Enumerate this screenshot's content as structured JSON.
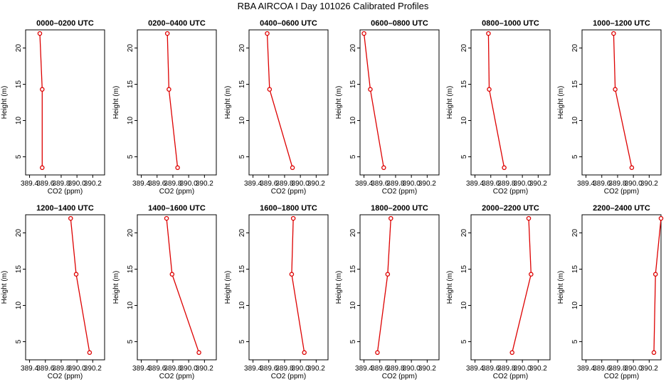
{
  "figure": {
    "title": "RBA AIRCOA I  Day 101026  Calibrated Profiles",
    "line_color": "#dd0000",
    "axis_color": "#000000"
  },
  "chart_data": [
    {
      "type": "line",
      "title": "0000–0200 UTC",
      "xlabel": "CO2 (ppm)",
      "ylabel": "Height (m)",
      "xlim": [
        389.35,
        390.35
      ],
      "ylim": [
        2.5,
        22.5
      ],
      "xticks": [
        "389.4",
        "389.6",
        "389.8",
        "390.0",
        "390.2"
      ],
      "yticks": [
        "5",
        "10",
        "15",
        "20"
      ],
      "x": [
        389.53,
        389.56,
        389.56
      ],
      "y": [
        22,
        14.3,
        3.5
      ]
    },
    {
      "type": "line",
      "title": "0200–0400 UTC",
      "xlabel": "CO2 (ppm)",
      "ylabel": "Height (m)",
      "xlim": [
        389.35,
        390.35
      ],
      "ylim": [
        2.5,
        22.5
      ],
      "xticks": [
        "389.4",
        "389.6",
        "389.8",
        "390.0",
        "390.2"
      ],
      "yticks": [
        "5",
        "10",
        "15",
        "20"
      ],
      "x": [
        389.73,
        389.75,
        389.86
      ],
      "y": [
        22,
        14.3,
        3.5
      ]
    },
    {
      "type": "line",
      "title": "0400–0600 UTC",
      "xlabel": "CO2 (ppm)",
      "ylabel": "Height (m)",
      "xlim": [
        389.35,
        390.35
      ],
      "ylim": [
        2.5,
        22.5
      ],
      "xticks": [
        "389.4",
        "389.6",
        "389.8",
        "390.0",
        "390.2"
      ],
      "yticks": [
        "5",
        "10",
        "15",
        "20"
      ],
      "x": [
        389.58,
        389.61,
        389.9
      ],
      "y": [
        22,
        14.3,
        3.5
      ]
    },
    {
      "type": "line",
      "title": "0600–0800 UTC",
      "xlabel": "CO2 (ppm)",
      "ylabel": "Height (m)",
      "xlim": [
        389.35,
        390.35
      ],
      "ylim": [
        2.5,
        22.5
      ],
      "xticks": [
        "389.4",
        "389.6",
        "389.8",
        "390.0",
        "390.2"
      ],
      "yticks": [
        "5",
        "10",
        "15",
        "20"
      ],
      "x": [
        389.4,
        389.48,
        389.65
      ],
      "y": [
        22,
        14.3,
        3.5
      ]
    },
    {
      "type": "line",
      "title": "0800–1000 UTC",
      "xlabel": "CO2 (ppm)",
      "ylabel": "Height (m)",
      "xlim": [
        389.35,
        390.35
      ],
      "ylim": [
        2.5,
        22.5
      ],
      "xticks": [
        "389.4",
        "389.6",
        "389.8",
        "390.0",
        "390.2"
      ],
      "yticks": [
        "5",
        "10",
        "15",
        "20"
      ],
      "x": [
        389.57,
        389.58,
        389.77
      ],
      "y": [
        22,
        14.3,
        3.5
      ]
    },
    {
      "type": "line",
      "title": "1000–1200 UTC",
      "xlabel": "CO2 (ppm)",
      "ylabel": "Height (m)",
      "xlim": [
        389.35,
        390.35
      ],
      "ylim": [
        2.5,
        22.5
      ],
      "xticks": [
        "389.4",
        "389.6",
        "389.8",
        "390.0",
        "390.2"
      ],
      "yticks": [
        "5",
        "10",
        "15",
        "20"
      ],
      "x": [
        389.75,
        389.77,
        389.98
      ],
      "y": [
        22,
        14.3,
        3.5
      ]
    },
    {
      "type": "line",
      "title": "1200–1400 UTC",
      "xlabel": "CO2 (ppm)",
      "ylabel": "Height (m)",
      "xlim": [
        389.35,
        390.35
      ],
      "ylim": [
        2.5,
        22.5
      ],
      "xticks": [
        "389.4",
        "389.6",
        "389.8",
        "390.0",
        "390.2"
      ],
      "yticks": [
        "5",
        "10",
        "15",
        "20"
      ],
      "x": [
        389.92,
        389.99,
        390.16
      ],
      "y": [
        22,
        14.3,
        3.5
      ]
    },
    {
      "type": "line",
      "title": "1400–1600 UTC",
      "xlabel": "CO2 (ppm)",
      "ylabel": "Height (m)",
      "xlim": [
        389.35,
        390.35
      ],
      "ylim": [
        2.5,
        22.5
      ],
      "xticks": [
        "389.4",
        "389.6",
        "389.8",
        "390.0",
        "390.2"
      ],
      "yticks": [
        "5",
        "10",
        "15",
        "20"
      ],
      "x": [
        389.72,
        389.79,
        390.13
      ],
      "y": [
        22,
        14.3,
        3.5
      ]
    },
    {
      "type": "line",
      "title": "1600–1800 UTC",
      "xlabel": "CO2 (ppm)",
      "ylabel": "Height (m)",
      "xlim": [
        389.35,
        390.35
      ],
      "ylim": [
        2.5,
        22.5
      ],
      "xticks": [
        "389.4",
        "389.6",
        "389.8",
        "390.0",
        "390.2"
      ],
      "yticks": [
        "5",
        "10",
        "15",
        "20"
      ],
      "x": [
        389.91,
        389.89,
        390.05
      ],
      "y": [
        22,
        14.3,
        3.5
      ]
    },
    {
      "type": "line",
      "title": "1800–2000 UTC",
      "xlabel": "CO2 (ppm)",
      "ylabel": "Height (m)",
      "xlim": [
        389.35,
        390.35
      ],
      "ylim": [
        2.5,
        22.5
      ],
      "xticks": [
        "389.4",
        "389.6",
        "389.8",
        "390.0",
        "390.2"
      ],
      "yticks": [
        "5",
        "10",
        "15",
        "20"
      ],
      "x": [
        389.74,
        389.7,
        389.57
      ],
      "y": [
        22,
        14.3,
        3.5
      ]
    },
    {
      "type": "line",
      "title": "2000–2200 UTC",
      "xlabel": "CO2 (ppm)",
      "ylabel": "Height (m)",
      "xlim": [
        389.35,
        390.35
      ],
      "ylim": [
        2.5,
        22.5
      ],
      "xticks": [
        "389.4",
        "389.6",
        "389.8",
        "390.0",
        "390.2"
      ],
      "yticks": [
        "5",
        "10",
        "15",
        "20"
      ],
      "x": [
        390.08,
        390.11,
        389.87
      ],
      "y": [
        22,
        14.3,
        3.5
      ]
    },
    {
      "type": "line",
      "title": "2200–2400 UTC",
      "xlabel": "CO2 (ppm)",
      "ylabel": "Height (m)",
      "xlim": [
        389.35,
        390.35
      ],
      "ylim": [
        2.5,
        22.5
      ],
      "xticks": [
        "389.4",
        "389.6",
        "389.8",
        "390.0",
        "390.2"
      ],
      "yticks": [
        "5",
        "10",
        "15",
        "20"
      ],
      "x": [
        390.35,
        390.28,
        390.26
      ],
      "y": [
        22,
        14.3,
        3.5
      ]
    }
  ]
}
